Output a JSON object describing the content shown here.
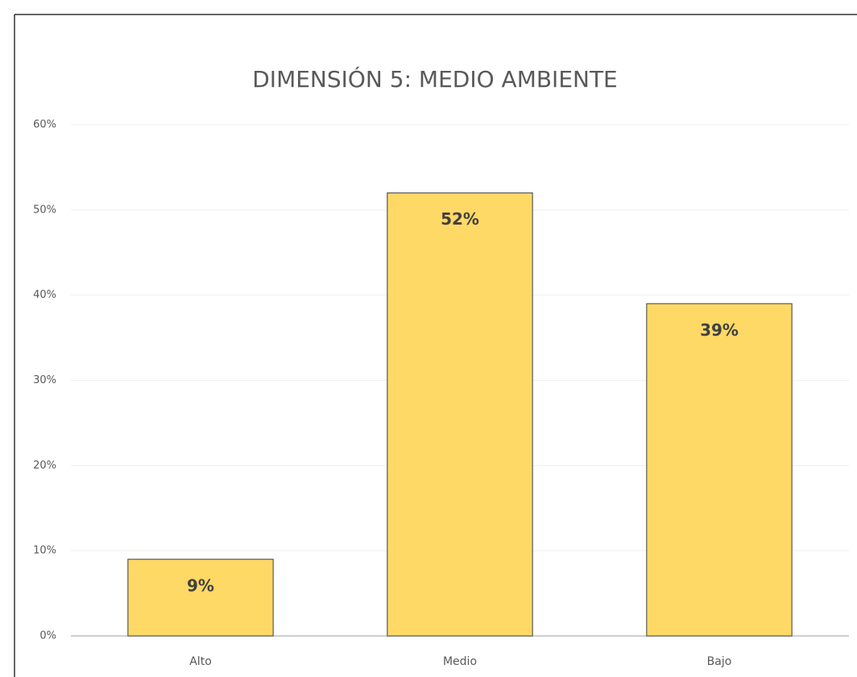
{
  "chart_data": {
    "type": "bar",
    "title": "DIMENSIÓN 5: MEDIO AMBIENTE",
    "categories": [
      "Alto",
      "Medio",
      "Bajo"
    ],
    "values": [
      9,
      52,
      39
    ],
    "value_labels": [
      "9%",
      "52%",
      "39%"
    ],
    "color": "#ffd966",
    "ylim": [
      0,
      60
    ],
    "yticks": [
      {
        "value": 0,
        "label": "0%"
      },
      {
        "value": 10,
        "label": "10%"
      },
      {
        "value": 20,
        "label": "20%"
      },
      {
        "value": 30,
        "label": "30%"
      },
      {
        "value": 40,
        "label": "40%"
      },
      {
        "value": 50,
        "label": "50%"
      },
      {
        "value": 60,
        "label": "60%"
      }
    ],
    "grid": true
  }
}
